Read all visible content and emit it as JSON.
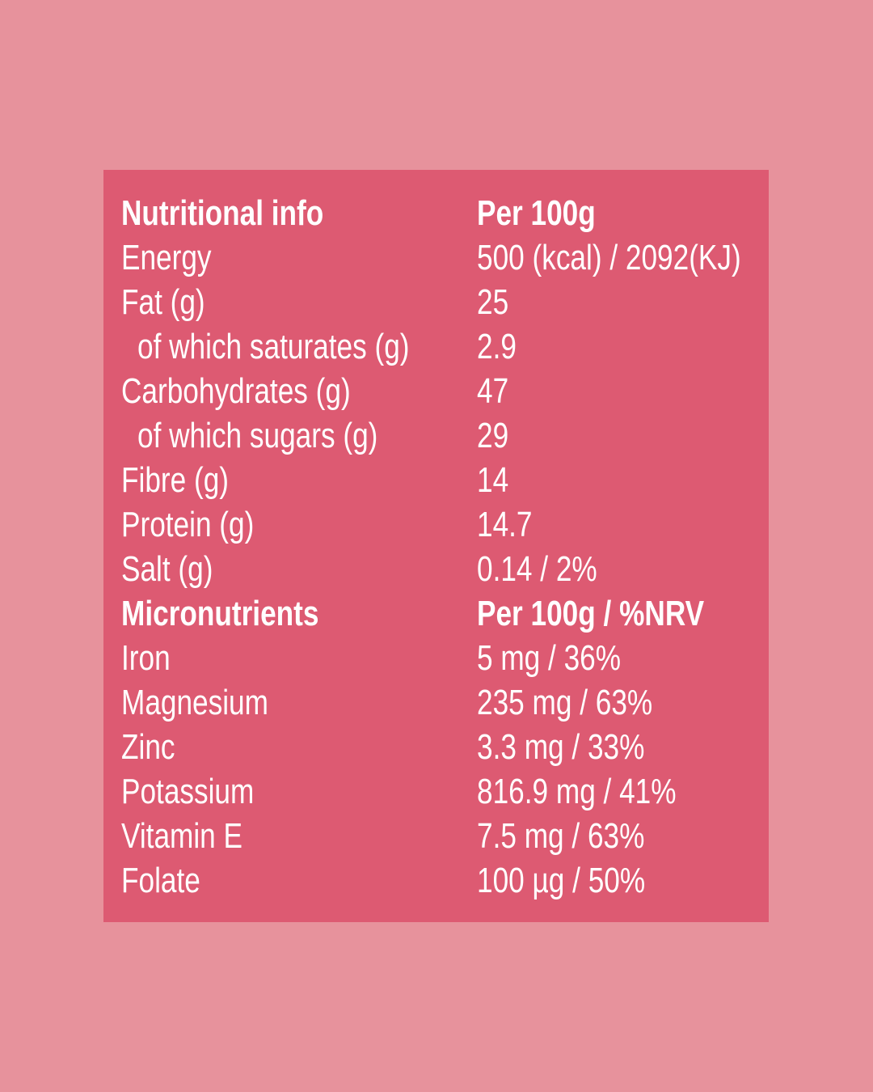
{
  "colors": {
    "page_background": "#e7929c",
    "panel_background": "#dd5a72",
    "text": "#ffffff"
  },
  "table": {
    "sections": [
      {
        "header": {
          "label": "Nutritional info",
          "value": "Per 100g"
        },
        "rows": [
          {
            "label": "Energy",
            "value": "500 (kcal) / 2092(KJ)"
          },
          {
            "label": "Fat (g)",
            "value": "25"
          },
          {
            "label": "of which saturates (g)",
            "value": "2.9"
          },
          {
            "label": "Carbohydrates (g)",
            "value": "47"
          },
          {
            "label": "of which sugars (g)",
            "value": "29"
          },
          {
            "label": "Fibre (g)",
            "value": "14"
          },
          {
            "label": "Protein (g)",
            "value": "14.7"
          },
          {
            "label": "Salt (g)",
            "value": "0.14 / 2%"
          }
        ]
      },
      {
        "header": {
          "label": "Micronutrients",
          "value": "Per 100g / %NRV"
        },
        "rows": [
          {
            "label": "Iron",
            "value": "5 mg / 36%"
          },
          {
            "label": "Magnesium",
            "value": "235 mg / 63%"
          },
          {
            "label": "Zinc",
            "value": "3.3 mg / 33%"
          },
          {
            "label": "Potassium",
            "value": "816.9 mg / 41%"
          },
          {
            "label": "Vitamin E",
            "value": "7.5 mg / 63%"
          },
          {
            "label": "Folate",
            "value": "100 µg / 50%"
          }
        ]
      }
    ]
  }
}
